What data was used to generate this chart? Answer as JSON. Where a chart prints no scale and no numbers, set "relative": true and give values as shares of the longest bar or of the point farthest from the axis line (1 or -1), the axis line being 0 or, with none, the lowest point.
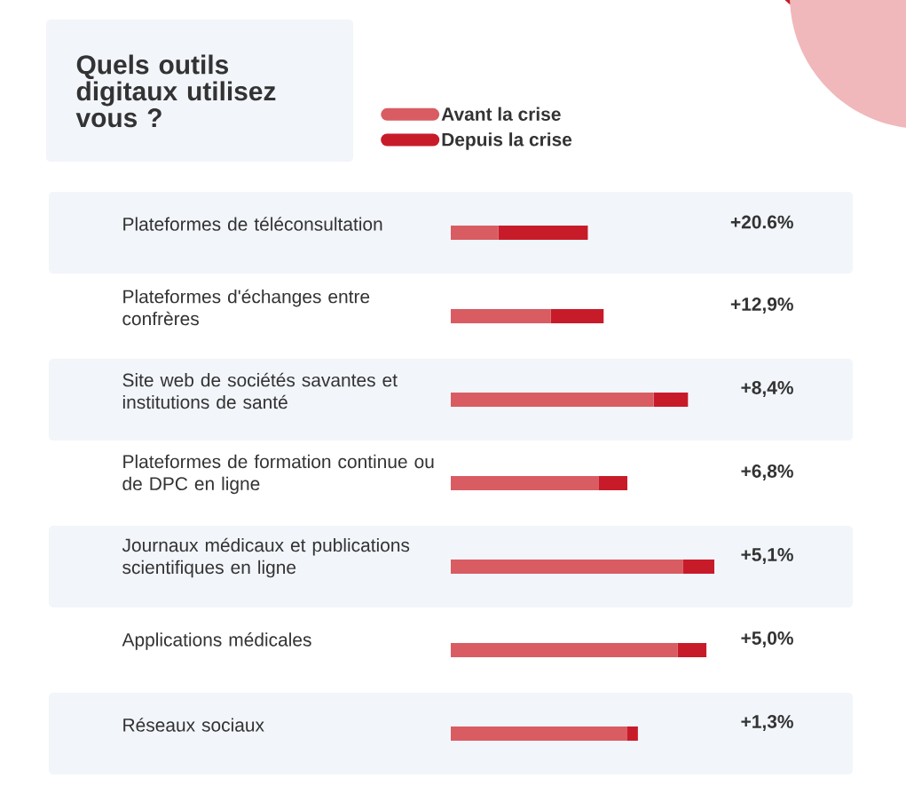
{
  "chart_data": {
    "type": "bar",
    "orientation": "horizontal",
    "relative": true,
    "title": "Quels outils digitaux utilisez vous ?",
    "categories": [
      "Plateformes de téléconsultation",
      "Plateformes d'échanges entre confrères",
      "Site web de sociétés savantes et institutions de santé",
      "Plateformes de formation continue ou de DPC en ligne",
      "Journaux médicaux et publications scientifiques en ligne",
      "Applications médicales",
      "Réseaux sociaux"
    ],
    "series": [
      {
        "name": "Avant la crise",
        "color": "#d95c63",
        "values": [
          0.18,
          0.38,
          0.77,
          0.56,
          0.88,
          0.86,
          0.67
        ]
      },
      {
        "name": "Depuis la crise",
        "color": "#c81b2a",
        "values": [
          0.34,
          0.2,
          0.13,
          0.11,
          0.12,
          0.11,
          0.04
        ]
      }
    ],
    "annotations": [
      "+20.6%",
      "+12,9%",
      "+8,4%",
      "+6,8%",
      "+5,1%",
      "+5,0%",
      "+1,3%"
    ],
    "stacked": true,
    "legend": "top"
  }
}
